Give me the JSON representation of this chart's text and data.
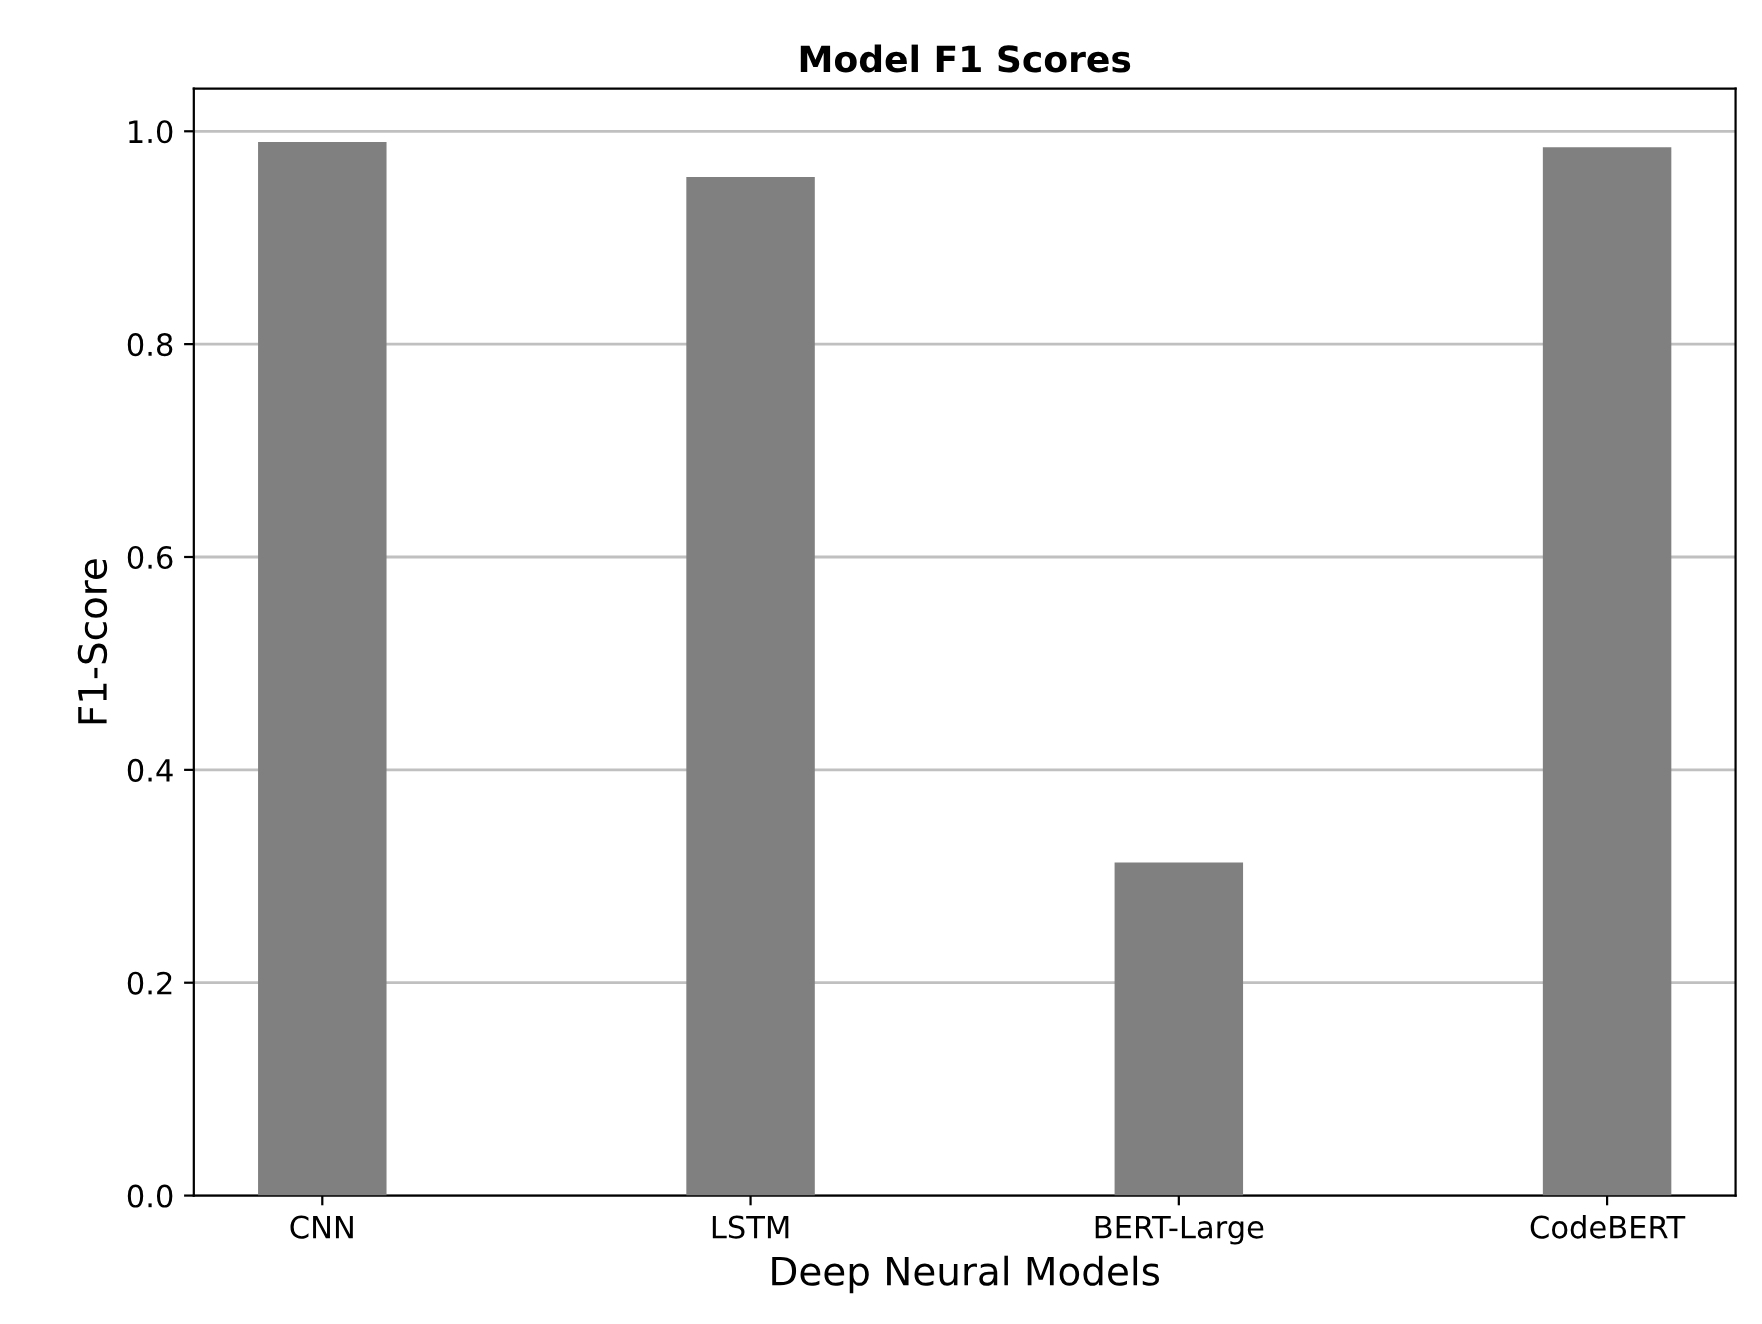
{
  "chart_data": {
    "type": "bar",
    "title": "Model F1 Scores",
    "xlabel": "Deep Neural Models",
    "ylabel": "F1-Score",
    "categories": [
      "CNN",
      "LSTM",
      "BERT-Large",
      "CodeBERT"
    ],
    "values": [
      0.99,
      0.957,
      0.313,
      0.985
    ],
    "color": "#808080",
    "ylim": [
      0,
      1.04
    ],
    "yticks": [
      {
        "value": 0,
        "label": "0.0"
      },
      0.2,
      0.4,
      0.6,
      0.8,
      {
        "value": 1,
        "label": "1.0"
      }
    ],
    "grid": "y"
  }
}
